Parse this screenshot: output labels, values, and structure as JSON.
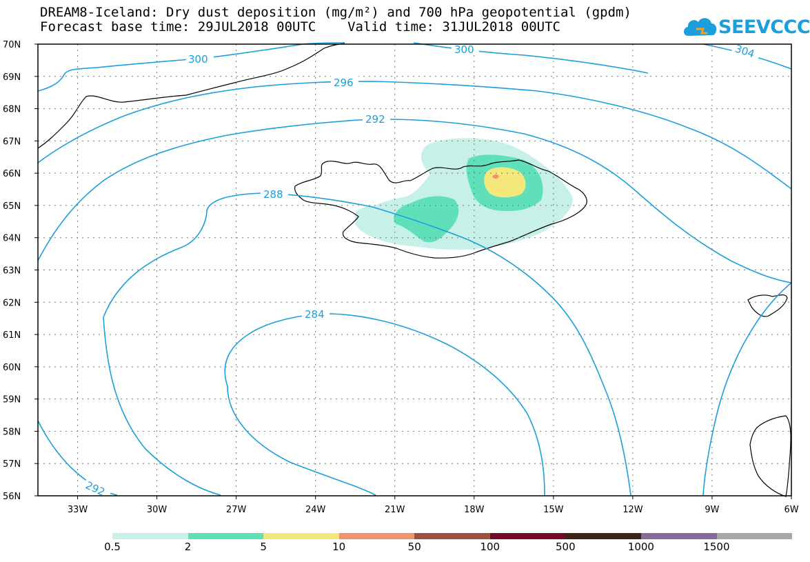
{
  "header": {
    "title_line1": "DREAM8-Iceland: Dry dust deposition (mg/m²) and 700 hPa geopotential (gpdm)",
    "title_line2": "Forecast base time: 29JUL2018 00UTC    Valid time: 31JUL2018 00UTC"
  },
  "logo": {
    "text": "SEEVCCC",
    "icon": "cloud-icon",
    "color": "#1a9fdc"
  },
  "map": {
    "lat_labels": [
      "70N",
      "69N",
      "68N",
      "67N",
      "66N",
      "65N",
      "64N",
      "63N",
      "62N",
      "61N",
      "60N",
      "59N",
      "58N",
      "57N",
      "56N"
    ],
    "lon_labels": [
      "33W",
      "30W",
      "27W",
      "24W",
      "21W",
      "18W",
      "15W",
      "12W",
      "9W",
      "6W"
    ],
    "lat_range": [
      56,
      70
    ],
    "lon_range": [
      -34.5,
      -6
    ],
    "contour_color": "#1a9fdc",
    "contour_labels": [
      "300",
      "300",
      "304",
      "296",
      "292",
      "288",
      "284",
      "292"
    ],
    "grid": "dotted"
  },
  "legend": {
    "colors": [
      "#c6f0e8",
      "#5fe0b8",
      "#f4e87a",
      "#f0956a",
      "#a0503e",
      "#760a28",
      "#3d2515",
      "#8a6a9a",
      "#a8a8a8"
    ],
    "labels": [
      "0.5",
      "2",
      "5",
      "10",
      "50",
      "100",
      "500",
      "1000",
      "1500"
    ]
  }
}
